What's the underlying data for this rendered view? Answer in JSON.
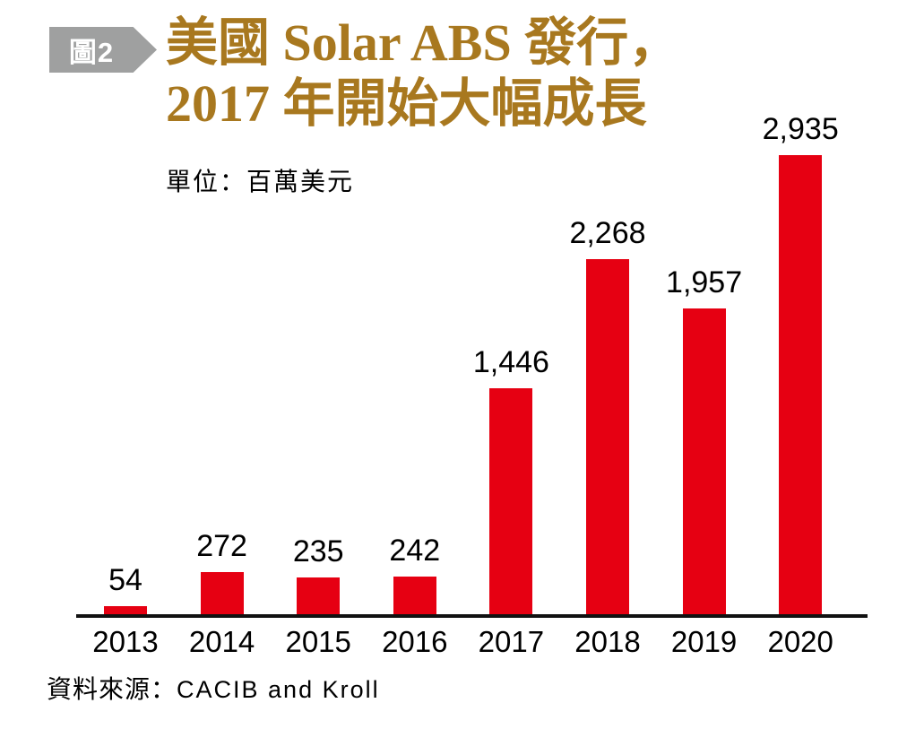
{
  "figure_badge": {
    "label": "圖2"
  },
  "title": {
    "line1": "美國 Solar ABS 發行，",
    "line2": "2017 年開始大幅成長"
  },
  "unit_label": "單位：百萬美元",
  "source": {
    "prefix": "資料來源：",
    "text": "CACIB and Kroll"
  },
  "colors": {
    "bar": "#E60012",
    "title_gold": "#A8781F",
    "badge_gray": "#9FA0A0",
    "axis_black": "#111111"
  },
  "chart_data": {
    "type": "bar",
    "title": "美國 Solar ABS 發行，2017 年開始大幅成長",
    "unit": "百萬美元",
    "categories": [
      "2013",
      "2014",
      "2015",
      "2016",
      "2017",
      "2018",
      "2019",
      "2020"
    ],
    "values": [
      54,
      272,
      235,
      242,
      1446,
      2268,
      1957,
      2935
    ],
    "value_labels": [
      "54",
      "272",
      "235",
      "242",
      "1,446",
      "2,268",
      "1,957",
      "2,935"
    ],
    "xlabel": "",
    "ylabel": "百萬美元",
    "ylim": [
      0,
      3000
    ],
    "grid": false,
    "legend": "none",
    "data_labels": true,
    "source": "CACIB and Kroll"
  }
}
